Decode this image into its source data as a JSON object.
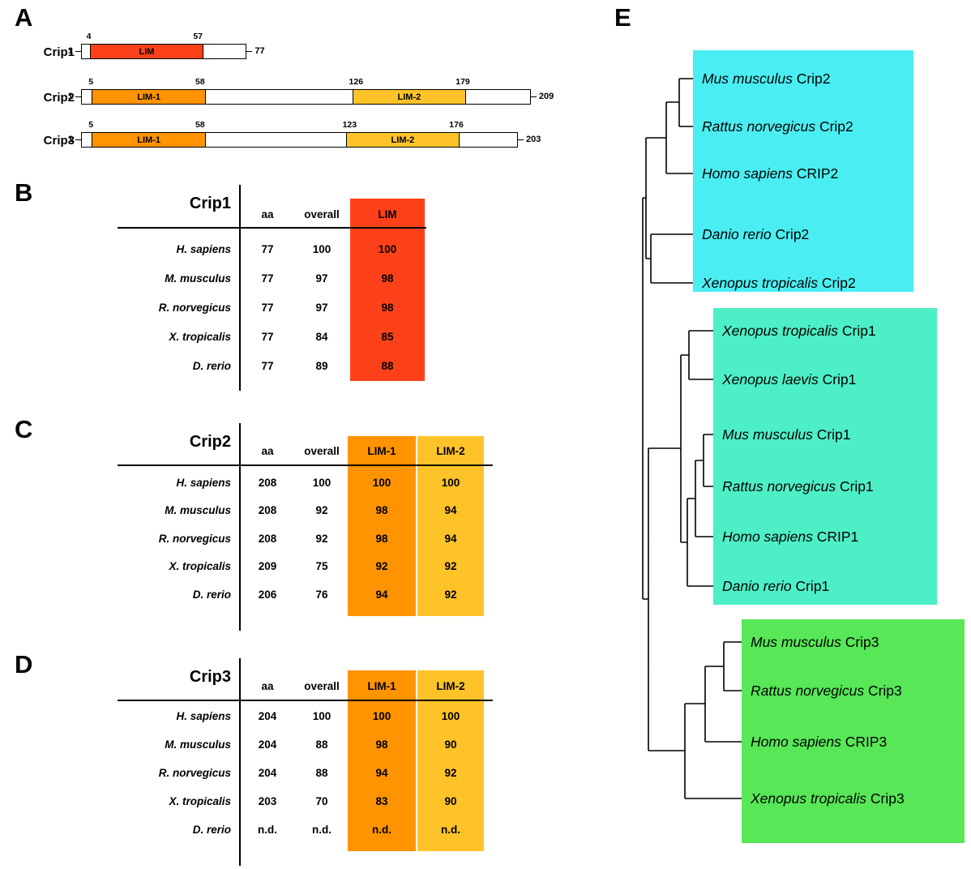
{
  "figure": {
    "panel_labels": {
      "A": "A",
      "B": "B",
      "C": "C",
      "D": "D",
      "E": "E"
    }
  },
  "colors": {
    "lim_red": "#ff4119",
    "lim1_orange": "#ff9300",
    "lim2_gold": "#ffc32a",
    "crip2_box": "#4aeef2",
    "crip1_box": "#4defc6",
    "crip3_box": "#57e757"
  },
  "panel_a": {
    "proteins": [
      {
        "name": "Crip1",
        "start": "1",
        "length": 77,
        "end": "77",
        "domains": [
          {
            "label": "LIM",
            "start": 4,
            "end": 57,
            "color_key": "lim_red"
          }
        ]
      },
      {
        "name": "Crip2",
        "start": "1",
        "length": 209,
        "end": "209",
        "domains": [
          {
            "label": "LIM-1",
            "start": 5,
            "end": 58,
            "color_key": "lim1_orange"
          },
          {
            "label": "LIM-2",
            "start": 126,
            "end": 179,
            "color_key": "lim2_gold"
          }
        ]
      },
      {
        "name": "Crip3",
        "start": "1",
        "length": 203,
        "end": "203",
        "domains": [
          {
            "label": "LIM-1",
            "start": 5,
            "end": 58,
            "color_key": "lim1_orange"
          },
          {
            "label": "LIM-2",
            "start": 123,
            "end": 176,
            "color_key": "lim2_gold"
          }
        ]
      }
    ]
  },
  "tables": [
    {
      "panel": "B",
      "title": "Crip1",
      "columns": [
        {
          "label": "aa"
        },
        {
          "label": "overall"
        },
        {
          "label": "LIM",
          "color_key": "lim_red"
        }
      ],
      "rows": [
        {
          "species": "H. sapiens",
          "values": [
            "77",
            "100",
            "100"
          ]
        },
        {
          "species": "M. musculus",
          "values": [
            "77",
            "97",
            "98"
          ]
        },
        {
          "species": "R. norvegicus",
          "values": [
            "77",
            "97",
            "98"
          ]
        },
        {
          "species": "X. tropicalis",
          "values": [
            "77",
            "84",
            "85"
          ]
        },
        {
          "species": "D. rerio",
          "values": [
            "77",
            "89",
            "88"
          ]
        }
      ]
    },
    {
      "panel": "C",
      "title": "Crip2",
      "columns": [
        {
          "label": "aa"
        },
        {
          "label": "overall"
        },
        {
          "label": "LIM-1",
          "color_key": "lim1_orange"
        },
        {
          "label": "LIM-2",
          "color_key": "lim2_gold"
        }
      ],
      "rows": [
        {
          "species": "H. sapiens",
          "values": [
            "208",
            "100",
            "100",
            "100"
          ]
        },
        {
          "species": "M. musculus",
          "values": [
            "208",
            "92",
            "98",
            "94"
          ]
        },
        {
          "species": "R. norvegicus",
          "values": [
            "208",
            "92",
            "98",
            "94"
          ]
        },
        {
          "species": "X. tropicalis",
          "values": [
            "209",
            "75",
            "92",
            "92"
          ]
        },
        {
          "species": "D. rerio",
          "values": [
            "206",
            "76",
            "94",
            "92"
          ]
        }
      ]
    },
    {
      "panel": "D",
      "title": "Crip3",
      "columns": [
        {
          "label": "aa"
        },
        {
          "label": "overall"
        },
        {
          "label": "LIM-1",
          "color_key": "lim1_orange"
        },
        {
          "label": "LIM-2",
          "color_key": "lim2_gold"
        }
      ],
      "rows": [
        {
          "species": "H. sapiens",
          "values": [
            "204",
            "100",
            "100",
            "100"
          ]
        },
        {
          "species": "M. musculus",
          "values": [
            "204",
            "88",
            "98",
            "90"
          ]
        },
        {
          "species": "R. norvegicus",
          "values": [
            "204",
            "88",
            "94",
            "92"
          ]
        },
        {
          "species": "X. tropicalis",
          "values": [
            "203",
            "70",
            "83",
            "90"
          ]
        },
        {
          "species": "D. rerio",
          "values": [
            "n.d.",
            "n.d.",
            "n.d.",
            "n.d."
          ]
        }
      ]
    }
  ],
  "tree": {
    "clades": [
      {
        "name": "Crip2",
        "color_key": "crip2_box",
        "taxa": [
          {
            "species": "Mus musculus",
            "gene": "Crip2"
          },
          {
            "species": "Rattus norvegicus",
            "gene": "Crip2"
          },
          {
            "species": "Homo sapiens",
            "gene": "CRIP2"
          },
          {
            "species": "Danio rerio",
            "gene": "Crip2"
          },
          {
            "species": "Xenopus tropicalis",
            "gene": "Crip2"
          }
        ]
      },
      {
        "name": "Crip1",
        "color_key": "crip1_box",
        "taxa": [
          {
            "species": "Xenopus tropicalis",
            "gene": "Crip1"
          },
          {
            "species": "Xenopus laevis",
            "gene": "Crip1"
          },
          {
            "species": "Mus musculus",
            "gene": "Crip1"
          },
          {
            "species": "Rattus norvegicus",
            "gene": "Crip1"
          },
          {
            "species": "Homo sapiens",
            "gene": "CRIP1"
          },
          {
            "species": "Danio rerio",
            "gene": "Crip1"
          }
        ]
      },
      {
        "name": "Crip3",
        "color_key": "crip3_box",
        "taxa": [
          {
            "species": "Mus musculus",
            "gene": "Crip3"
          },
          {
            "species": "Rattus norvegicus",
            "gene": "Crip3"
          },
          {
            "species": "Homo sapiens",
            "gene": "CRIP3"
          },
          {
            "species": "Xenopus tropicalis",
            "gene": "Crip3"
          }
        ]
      }
    ]
  }
}
